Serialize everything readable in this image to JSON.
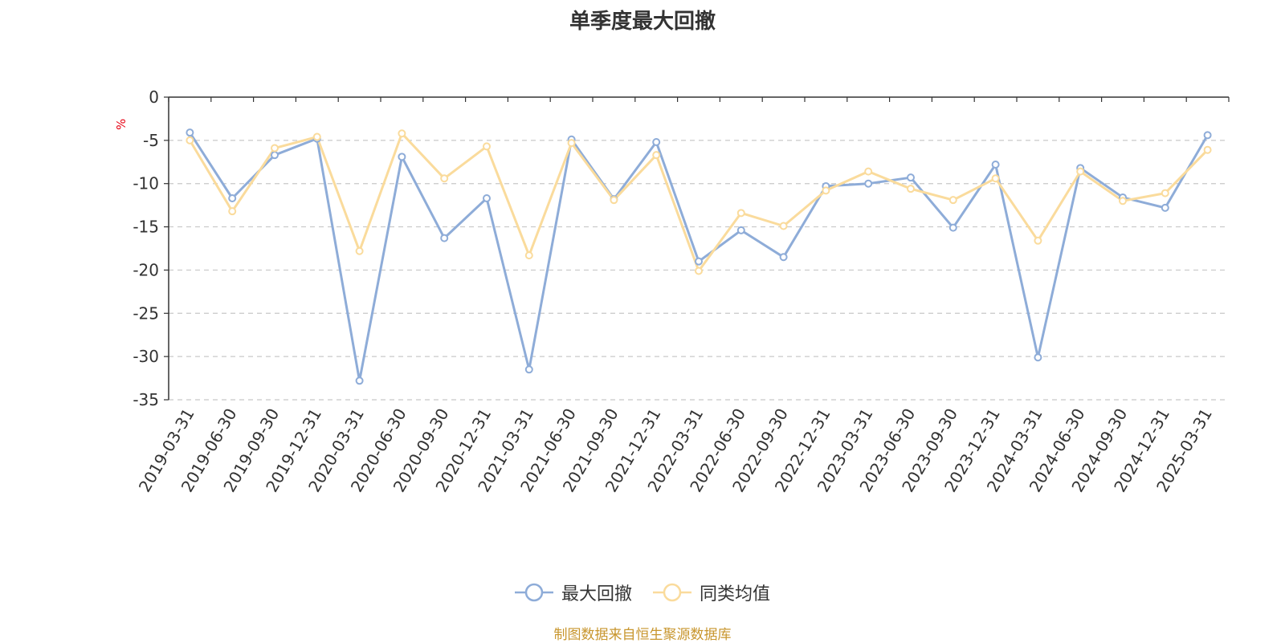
{
  "chart_data": {
    "type": "line",
    "title": "单季度最大回撤",
    "ylabel": "%",
    "ylim": [
      -35,
      0
    ],
    "yticks": [
      "0",
      "-5",
      "-10",
      "-15",
      "-20",
      "-25",
      "-30",
      "-35"
    ],
    "categories": [
      "2019-03-31",
      "2019-06-30",
      "2019-09-30",
      "2019-12-31",
      "2020-03-31",
      "2020-06-30",
      "2020-09-30",
      "2020-12-31",
      "2021-03-31",
      "2021-06-30",
      "2021-09-30",
      "2021-12-31",
      "2022-03-31",
      "2022-06-30",
      "2022-09-30",
      "2022-12-31",
      "2023-03-31",
      "2023-06-30",
      "2023-09-30",
      "2023-12-31",
      "2024-03-31",
      "2024-06-30",
      "2024-09-30",
      "2024-12-31",
      "2025-03-31"
    ],
    "series": [
      {
        "name": "最大回撤",
        "color": "#8eacd8",
        "values": [
          -4.1,
          -11.7,
          -6.7,
          -4.8,
          -32.8,
          -6.9,
          -16.3,
          -11.7,
          -31.5,
          -4.9,
          -11.8,
          -5.2,
          -19.0,
          -15.4,
          -18.5,
          -10.3,
          -10.0,
          -9.3,
          -15.1,
          -7.8,
          -30.1,
          -8.2,
          -11.6,
          -12.8,
          -4.4
        ]
      },
      {
        "name": "同类均值",
        "color": "#fadb9c",
        "values": [
          -5.0,
          -13.2,
          -5.9,
          -4.6,
          -17.8,
          -4.2,
          -9.4,
          -5.7,
          -18.3,
          -5.3,
          -11.9,
          -6.7,
          -20.1,
          -13.4,
          -14.9,
          -10.8,
          -8.6,
          -10.6,
          -11.9,
          -9.4,
          -16.6,
          -8.6,
          -12.0,
          -11.1,
          -6.1
        ]
      }
    ],
    "grid": true,
    "legend_position": "bottom-center"
  },
  "footer": {
    "source": "制图数据来自恒生聚源数据库"
  }
}
